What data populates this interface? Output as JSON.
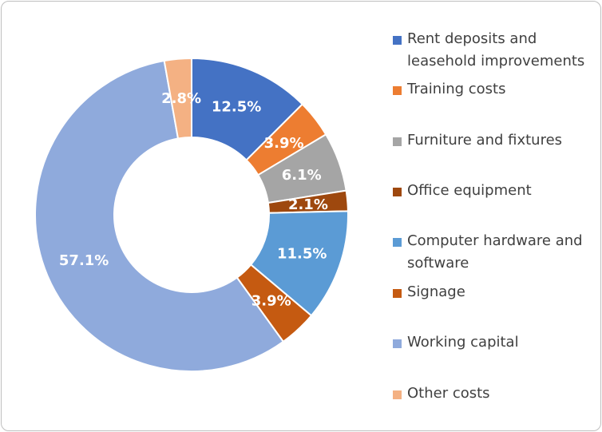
{
  "chart_data": {
    "type": "pie",
    "donut": true,
    "title": "",
    "legend_position": "right",
    "categories": [
      "Rent deposits and leasehold improvements",
      "Training costs",
      "Furniture and fixtures",
      "Office equipment",
      "Computer hardware and software",
      "Signage",
      "Working capital",
      "Other costs"
    ],
    "values": [
      12.5,
      3.9,
      6.1,
      2.1,
      11.5,
      3.9,
      57.1,
      2.8
    ],
    "labels": [
      "12.5%",
      "3.9%",
      "6.1%",
      "2.1%",
      "11.5%",
      "3.9%",
      "57.1%",
      "2.8%"
    ],
    "colors": [
      "#4472c4",
      "#ed7d31",
      "#a5a5a5",
      "#9e480e",
      "#5b9bd5",
      "#c55a11",
      "#8faadc",
      "#f4b183"
    ]
  }
}
